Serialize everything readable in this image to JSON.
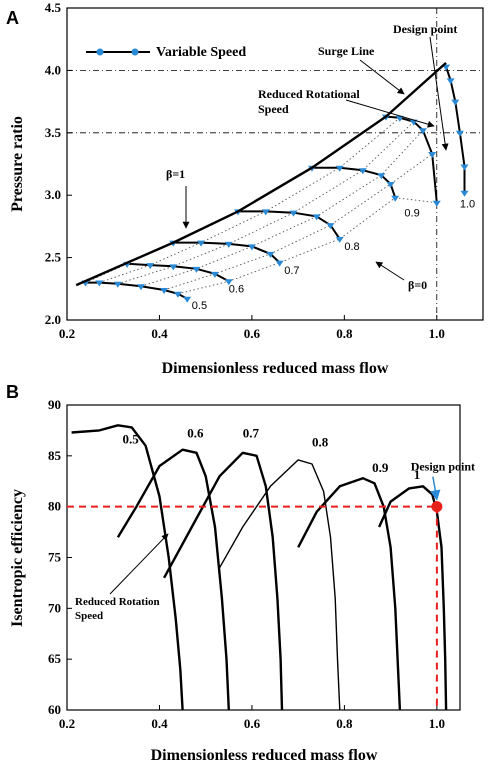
{
  "chart_data": [
    {
      "panel_label": "A",
      "type": "line",
      "xlabel": "Dimensionless reduced mass flow",
      "ylabel": "Pressure ratio",
      "xlim": [
        0.2,
        1.1
      ],
      "ylim": [
        2.0,
        4.5
      ],
      "xticks": [
        "0.2",
        "0.4",
        "0.6",
        "0.8",
        "1.0"
      ],
      "yticks": [
        "2.0",
        "2.5",
        "3.0",
        "3.5",
        "4.0",
        "4.5"
      ],
      "legend": {
        "label": "Variable Speed",
        "placement": "top-left"
      },
      "series": [
        {
          "name": "0.5",
          "x": [
            0.24,
            0.27,
            0.31,
            0.36,
            0.41,
            0.44,
            0.46
          ],
          "y": [
            2.3,
            2.3,
            2.29,
            2.27,
            2.24,
            2.21,
            2.17
          ]
        },
        {
          "name": "0.6",
          "x": [
            0.33,
            0.38,
            0.43,
            0.48,
            0.52,
            0.55
          ],
          "y": [
            2.45,
            2.44,
            2.43,
            2.41,
            2.37,
            2.31
          ]
        },
        {
          "name": "0.7",
          "x": [
            0.43,
            0.49,
            0.55,
            0.6,
            0.64,
            0.66
          ],
          "y": [
            2.62,
            2.62,
            2.61,
            2.59,
            2.53,
            2.46
          ]
        },
        {
          "name": "0.8",
          "x": [
            0.57,
            0.63,
            0.69,
            0.74,
            0.77,
            0.79
          ],
          "y": [
            2.87,
            2.87,
            2.86,
            2.83,
            2.76,
            2.65
          ]
        },
        {
          "name": "0.9",
          "x": [
            0.73,
            0.79,
            0.84,
            0.88,
            0.9,
            0.91
          ],
          "y": [
            3.22,
            3.22,
            3.2,
            3.16,
            3.09,
            2.98
          ]
        },
        {
          "name": "1.0",
          "x": [
            0.89,
            0.92,
            0.95,
            0.97,
            0.99,
            1.0
          ],
          "y": [
            3.63,
            3.62,
            3.59,
            3.52,
            3.33,
            2.94
          ]
        },
        {
          "name": "1.0",
          "x": [
            1.02,
            1.03,
            1.04,
            1.05,
            1.06,
            1.06
          ],
          "y": [
            4.03,
            3.92,
            3.75,
            3.5,
            3.23,
            3.02
          ]
        }
      ],
      "surge_line": {
        "x": [
          0.22,
          0.43,
          0.57,
          0.73,
          0.89,
          1.02
        ],
        "y": [
          2.28,
          2.62,
          2.87,
          3.22,
          3.63,
          4.06
        ]
      },
      "speed_labels": [
        {
          "text": "0.5",
          "x": 0.47,
          "y": 2.09
        },
        {
          "text": "0.6",
          "x": 0.55,
          "y": 2.22
        },
        {
          "text": "0.7",
          "x": 0.67,
          "y": 2.37
        },
        {
          "text": "0.8",
          "x": 0.8,
          "y": 2.56
        },
        {
          "text": "0.9",
          "x": 0.93,
          "y": 2.83
        },
        {
          "text": "1.0",
          "x": 1.05,
          "y": 2.9
        }
      ],
      "annotations": {
        "design_point": "Design point",
        "surge_line": "Surge Line",
        "reduced_speed_1": "Reduced Rotational",
        "reduced_speed_2": "Speed",
        "beta1": "β=1",
        "beta0": "β=0"
      }
    },
    {
      "panel_label": "B",
      "type": "line",
      "xlabel": "Dimensionless reduced mass flow",
      "ylabel": "Isentropic efficiency",
      "xlim": [
        0.2,
        1.05
      ],
      "ylim": [
        60,
        90
      ],
      "xticks": [
        "0.2",
        "0.4",
        "0.6",
        "0.8",
        "1.0"
      ],
      "yticks": [
        "60",
        "65",
        "70",
        "75",
        "80",
        "85",
        "90"
      ],
      "series": [
        {
          "name": "0.5",
          "x": [
            0.21,
            0.27,
            0.31,
            0.34,
            0.37,
            0.4,
            0.42,
            0.435,
            0.445,
            0.45
          ],
          "y": [
            87.3,
            87.5,
            88.0,
            87.8,
            86.0,
            81.0,
            75.0,
            69.0,
            64.0,
            60.0
          ]
        },
        {
          "name": "0.6",
          "x": [
            0.31,
            0.35,
            0.4,
            0.45,
            0.48,
            0.5,
            0.52,
            0.535,
            0.545,
            0.55
          ],
          "y": [
            77.0,
            80.0,
            84.0,
            85.6,
            85.3,
            83.0,
            78.0,
            71.0,
            65.0,
            60.0
          ]
        },
        {
          "name": "0.7",
          "x": [
            0.41,
            0.47,
            0.53,
            0.58,
            0.61,
            0.63,
            0.645,
            0.655,
            0.662,
            0.665
          ],
          "y": [
            73.0,
            78.0,
            83.0,
            85.3,
            85.0,
            82.0,
            77.0,
            71.0,
            65.0,
            60.0
          ]
        },
        {
          "name": "0.8",
          "x": [
            0.53,
            0.58,
            0.64,
            0.7,
            0.73,
            0.755,
            0.77,
            0.78,
            0.785,
            0.79
          ],
          "y": [
            74.0,
            78.0,
            82.0,
            84.6,
            84.2,
            81.5,
            77.0,
            71.0,
            65.0,
            60.0
          ]
        },
        {
          "name": "0.9",
          "x": [
            0.7,
            0.74,
            0.79,
            0.84,
            0.865,
            0.885,
            0.9,
            0.91,
            0.915,
            0.92
          ],
          "y": [
            76.0,
            79.5,
            82.0,
            82.8,
            82.3,
            80.0,
            76.0,
            70.0,
            65.0,
            60.0
          ]
        },
        {
          "name": "1",
          "x": [
            0.875,
            0.9,
            0.94,
            0.97,
            0.99,
            1.0,
            1.01,
            1.015,
            1.018,
            1.02
          ],
          "y": [
            78.0,
            80.5,
            81.8,
            82.0,
            81.2,
            79.5,
            76.0,
            70.0,
            65.0,
            60.0
          ]
        }
      ],
      "speed_labels": [
        {
          "text": "0.5",
          "x": 0.32,
          "y": 86.2
        },
        {
          "text": "0.6",
          "x": 0.46,
          "y": 86.8
        },
        {
          "text": "0.7",
          "x": 0.58,
          "y": 86.8
        },
        {
          "text": "0.8",
          "x": 0.73,
          "y": 85.9
        },
        {
          "text": "0.9",
          "x": 0.86,
          "y": 83.4
        },
        {
          "text": "1",
          "x": 0.95,
          "y": 82.7
        }
      ],
      "design_point": {
        "x": 1.0,
        "y": 80.0,
        "label": "Design point",
        "color": "#e8201c",
        "arrow_color": "#2b8ad6"
      },
      "annotations": {
        "reduced_speed_1": "Reduced Rotation",
        "reduced_speed_2": "Speed"
      }
    }
  ],
  "colors": {
    "marker": "#2b8ad6",
    "line": "#000000",
    "design": "#e8201c"
  }
}
